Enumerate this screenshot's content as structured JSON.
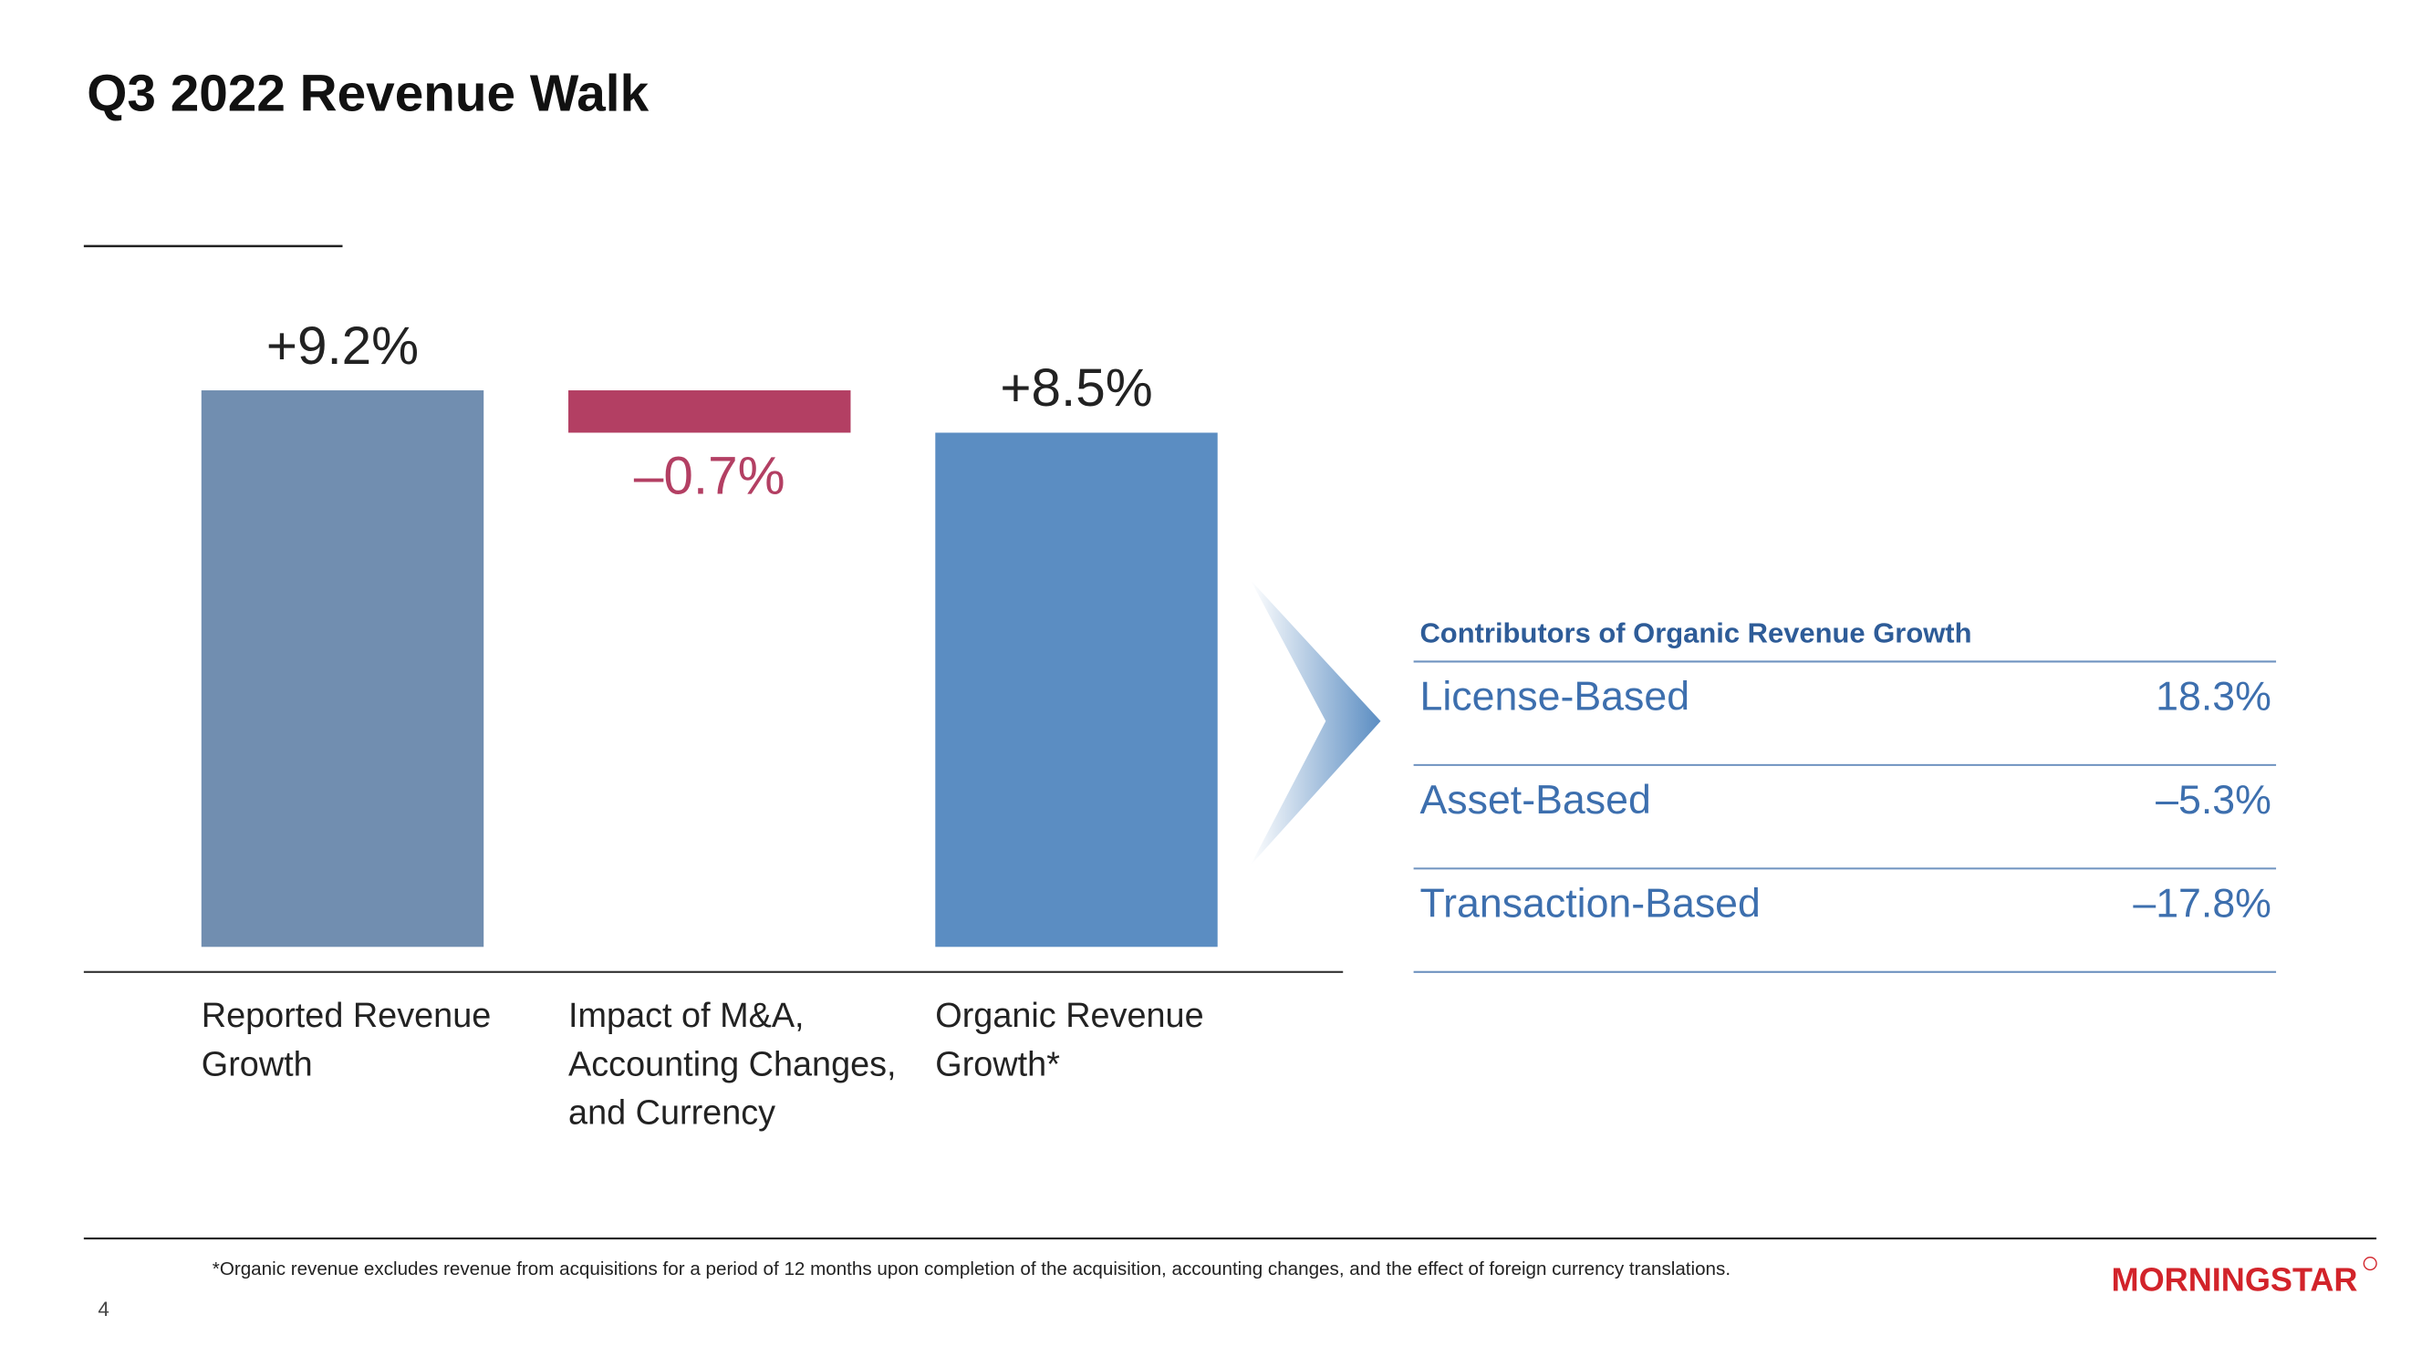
{
  "title": "Q3 2022 Revenue Walk",
  "chart_data": {
    "type": "waterfall",
    "categories": [
      "Reported Revenue Growth",
      "Impact of M&A, Accounting Changes, and Currency",
      "Organic Revenue Growth*"
    ],
    "measures": [
      "absolute",
      "relative",
      "total"
    ],
    "values": [
      9.2,
      -0.7,
      8.5
    ],
    "value_labels": [
      "+9.2%",
      "–0.7%",
      "+8.5%"
    ],
    "colors": [
      "#718eb0",
      "#b33f63",
      "#5b8dc2"
    ]
  },
  "contributors": {
    "title": "Contributors of Organic Revenue Growth",
    "rows": [
      [
        "License-Based",
        "18.3%"
      ],
      [
        "Asset-Based",
        "–5.3%"
      ],
      [
        "Transaction-Based",
        "–17.8%"
      ]
    ]
  },
  "footnote": "*Organic revenue excludes revenue from acquisitions for a period of 12 months upon completion of the acquisition, accounting changes, and the effect of foreign currency translations.",
  "page_number": "4",
  "logo": "MORNINGSTAR"
}
